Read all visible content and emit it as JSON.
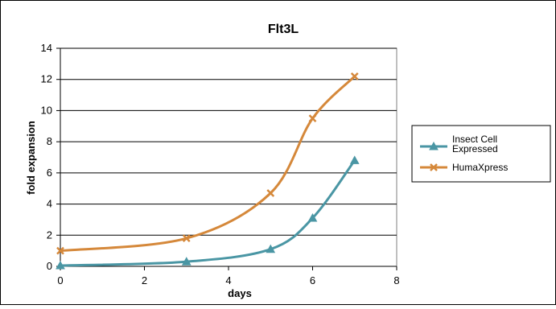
{
  "chart_data": {
    "type": "line",
    "title": "Flt3L",
    "xlabel": "days",
    "ylabel": "fold expansion",
    "xlim": [
      0,
      8
    ],
    "ylim": [
      0,
      14
    ],
    "x_ticks": [
      0,
      2,
      4,
      6,
      8
    ],
    "y_ticks": [
      0,
      2,
      4,
      6,
      8,
      10,
      12,
      14
    ],
    "grid": "horizontal",
    "legend_position": "right",
    "smooth": true,
    "series": [
      {
        "name_lines": [
          "Insect Cell",
          "Expressed"
        ],
        "color": "#4a96a4",
        "marker": "triangle",
        "x": [
          0,
          3,
          5,
          6,
          7
        ],
        "y": [
          0.05,
          0.3,
          1.1,
          3.1,
          6.8
        ]
      },
      {
        "name_lines": [
          "HumaXpress"
        ],
        "color": "#d5883a",
        "marker": "x",
        "x": [
          0,
          3,
          5,
          6,
          7
        ],
        "y": [
          1.0,
          1.8,
          4.7,
          9.5,
          12.2
        ]
      }
    ]
  }
}
